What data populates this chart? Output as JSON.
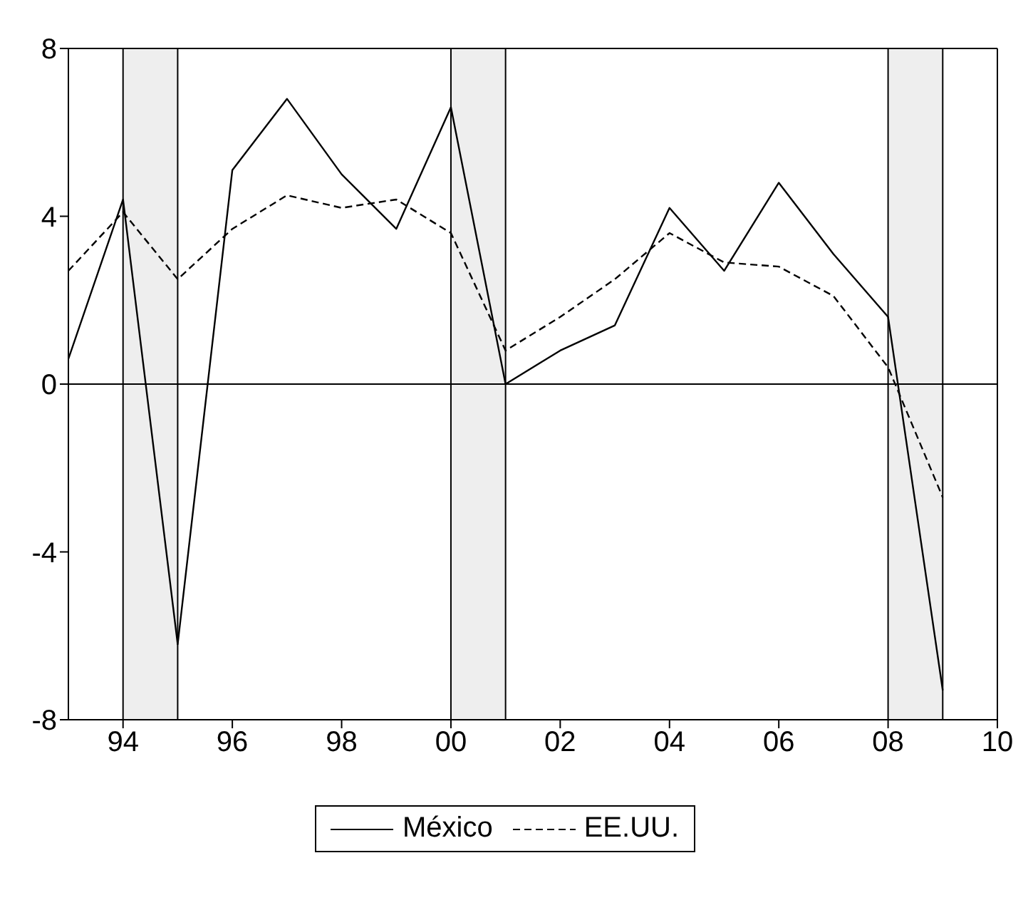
{
  "chart_data": {
    "type": "line",
    "x": [
      1993,
      1994,
      1995,
      1996,
      1997,
      1998,
      1999,
      2000,
      2001,
      2002,
      2003,
      2004,
      2005,
      2006,
      2007,
      2008,
      2009
    ],
    "series": [
      {
        "name": "México",
        "color": "#000000",
        "line_style": "solid",
        "values": [
          0.6,
          4.4,
          -6.2,
          5.1,
          6.8,
          5.0,
          3.7,
          6.6,
          0.0,
          0.8,
          1.4,
          4.2,
          2.7,
          4.8,
          3.1,
          1.6,
          -7.3
        ]
      },
      {
        "name": "EE.UU.",
        "color": "#000000",
        "line_style": "dashed",
        "values": [
          2.7,
          4.1,
          2.5,
          3.7,
          4.5,
          4.2,
          4.4,
          3.6,
          0.8,
          1.6,
          2.5,
          3.6,
          2.9,
          2.8,
          2.1,
          0.4,
          -2.7
        ]
      }
    ],
    "xlim": [
      1993,
      2010
    ],
    "xticks": [
      {
        "value": 1994,
        "label": "94"
      },
      {
        "value": 1996,
        "label": "96"
      },
      {
        "value": 1998,
        "label": "98"
      },
      {
        "value": 2000,
        "label": "00"
      },
      {
        "value": 2002,
        "label": "02"
      },
      {
        "value": 2004,
        "label": "04"
      },
      {
        "value": 2006,
        "label": "06"
      },
      {
        "value": 2008,
        "label": "08"
      },
      {
        "value": 2010,
        "label": "10"
      }
    ],
    "ylim": [
      -8,
      8
    ],
    "yticks": [
      -8,
      -4,
      0,
      4,
      8
    ],
    "bands": [
      {
        "axis": "x",
        "from": 1994,
        "to": 1995,
        "color": "#eeeeee"
      },
      {
        "axis": "x",
        "from": 2000,
        "to": 2001,
        "color": "#eeeeee"
      },
      {
        "axis": "x",
        "from": 2008,
        "to": 2009,
        "color": "#eeeeee"
      }
    ],
    "ref_lines": [
      {
        "axis": "y",
        "value": 0,
        "color": "#000000"
      }
    ],
    "grid": false,
    "legend": "bottom",
    "marker": "none"
  }
}
